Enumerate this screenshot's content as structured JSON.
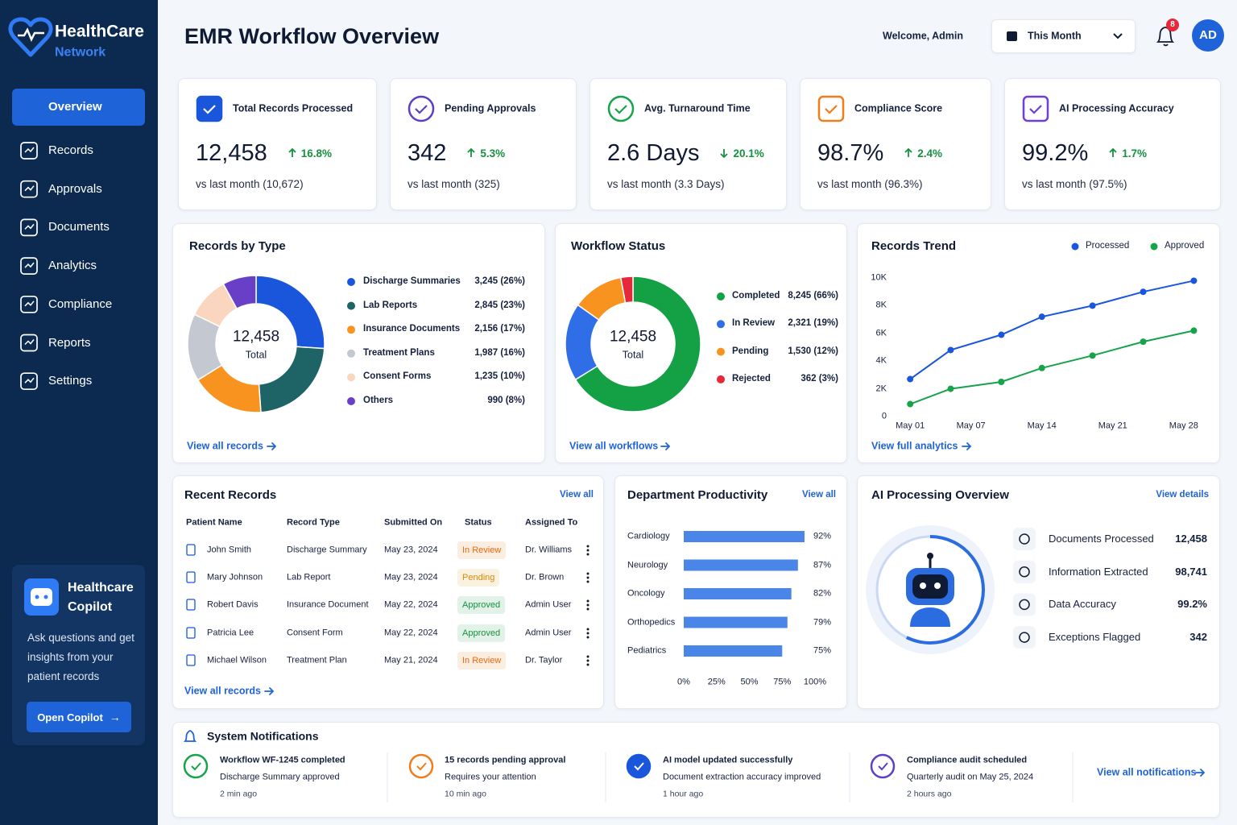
{
  "brand": {
    "name": "HealthCare",
    "tagline": "Network"
  },
  "nav": {
    "items": [
      "Overview",
      "Records",
      "Approvals",
      "Documents",
      "Analytics",
      "Compliance",
      "Reports",
      "Settings"
    ],
    "active": 0
  },
  "copilot": {
    "title": "Healthcare Copilot",
    "text": "Ask questions and get insights from your patient records",
    "button": "Open Copilot"
  },
  "header": {
    "title": "EMR Workflow Overview",
    "welcome": "Welcome, Admin",
    "period": "This Month",
    "notification_count": "8",
    "avatar": "AD"
  },
  "kpis": [
    {
      "label": "Total Records Processed",
      "value": "12,458",
      "change": "16.8%",
      "direction": "up",
      "comparison": "vs last month (10,672)",
      "color": "#1a56db"
    },
    {
      "label": "Pending Approvals",
      "value": "342",
      "change": "5.3%",
      "direction": "up",
      "comparison": "vs last month (325)",
      "color": "#5b3fc4"
    },
    {
      "label": "Avg. Turnaround Time",
      "value": "2.6 Days",
      "change": "20.1%",
      "direction": "down",
      "comparison": "vs last month (3.3 Days)",
      "color": "#16a34a"
    },
    {
      "label": "Compliance Score",
      "value": "98.7%",
      "change": "2.4%",
      "direction": "up",
      "comparison": "vs last month (96.3%)",
      "color": "#f07d1a"
    },
    {
      "label": "AI Processing Accuracy",
      "value": "99.2%",
      "change": "1.7%",
      "direction": "up",
      "comparison": "vs last month (97.5%)",
      "color": "#6d3fd6"
    }
  ],
  "records_by_type": {
    "title": "Records by Type",
    "type": "donut",
    "total": "12,458",
    "total_label": "Total",
    "items": [
      {
        "name": "Discharge Summaries",
        "value": 3245,
        "label": "3,245 (26%)",
        "color": "#1a56db"
      },
      {
        "name": "Lab Reports",
        "value": 2845,
        "label": "2,845 (23%)",
        "color": "#1e6366"
      },
      {
        "name": "Insurance Documents",
        "value": 2156,
        "label": "2,156 (17%)",
        "color": "#f7931e"
      },
      {
        "name": "Treatment Plans",
        "value": 1987,
        "label": "1,987 (16%)",
        "color": "#c3c8d1"
      },
      {
        "name": "Consent Forms",
        "value": 1235,
        "label": "1,235 (10%)",
        "color": "#f9d6bd"
      },
      {
        "name": "Others",
        "value": 990,
        "label": "990 (8%)",
        "color": "#6a3fc8"
      }
    ],
    "link": "View all records"
  },
  "workflow_status": {
    "title": "Workflow Status",
    "type": "donut",
    "total": "12,458",
    "total_label": "Total",
    "items": [
      {
        "name": "Completed",
        "value": 8245,
        "label": "8,245 (66%)",
        "color": "#14a044"
      },
      {
        "name": "In Review",
        "value": 2321,
        "label": "2,321 (19%)",
        "color": "#2f6ee6"
      },
      {
        "name": "Pending",
        "value": 1530,
        "label": "1,530 (12%)",
        "color": "#f7931e"
      },
      {
        "name": "Rejected",
        "value": 362,
        "label": "362 (3%)",
        "color": "#e5283a"
      }
    ],
    "link": "View all workflows"
  },
  "records_trend": {
    "title": "Records Trend",
    "type": "line",
    "x": [
      1,
      5,
      10,
      14,
      19,
      24,
      29
    ],
    "xlim": [
      -1,
      30
    ],
    "xticks": [
      {
        "value": 1,
        "label": "May 01"
      },
      {
        "value": 7,
        "label": "May 07"
      },
      {
        "value": 14,
        "label": "May 14"
      },
      {
        "value": 21,
        "label": "May 21"
      },
      {
        "value": 28,
        "label": "May 28"
      }
    ],
    "ylim": [
      0,
      10000
    ],
    "yticks": [
      0,
      {
        "value": 2000,
        "label": "2K"
      },
      {
        "value": 4000,
        "label": "4K"
      },
      {
        "value": 6000,
        "label": "6K"
      },
      {
        "value": 8000,
        "label": "8K"
      },
      {
        "value": 10000,
        "label": "10K"
      }
    ],
    "series": [
      {
        "name": "Processed",
        "color": "#1a56db",
        "values": [
          2700,
          4800,
          5900,
          7200,
          8000,
          9000,
          9800
        ]
      },
      {
        "name": "Approved",
        "color": "#16a34a",
        "values": [
          900,
          2000,
          2500,
          3500,
          4400,
          5400,
          6200
        ]
      }
    ],
    "link": "View full analytics"
  },
  "department_productivity": {
    "title": "Department Productivity",
    "link": "View all",
    "type": "bar",
    "color": "#4a86e8",
    "categories": [
      "Cardiology",
      "Neurology",
      "Oncology",
      "Orthopedics",
      "Pediatrics"
    ],
    "values": [
      92,
      87,
      82,
      79,
      75
    ],
    "value_labels": [
      "92%",
      "87%",
      "82%",
      "79%",
      "75%"
    ],
    "xlim": [
      0,
      100
    ],
    "xticks": [
      {
        "value": 0,
        "label": "0%"
      },
      {
        "value": 25,
        "label": "25%"
      },
      {
        "value": 50,
        "label": "50%"
      },
      {
        "value": 75,
        "label": "75%"
      },
      {
        "value": 100,
        "label": "100%"
      }
    ]
  },
  "recent_records": {
    "title": "Recent Records",
    "link": "View all",
    "columns": [
      "Patient Name",
      "Record Type",
      "Submitted On",
      "Status",
      "Assigned To"
    ],
    "rows": [
      {
        "patient": "John Smith",
        "type": "Discharge Summary",
        "date": "May 23, 2024",
        "status": "In Review",
        "status_color": "#ea6a0c",
        "assignee": "Dr. Williams"
      },
      {
        "patient": "Mary Johnson",
        "type": "Lab Report",
        "date": "May 23, 2024",
        "status": "Pending",
        "status_color": "#d98a06",
        "assignee": "Dr. Brown"
      },
      {
        "patient": "Robert Davis",
        "type": "Insurance Document",
        "date": "May 22, 2024",
        "status": "Approved",
        "status_color": "#15913f",
        "assignee": "Admin User"
      },
      {
        "patient": "Patricia Lee",
        "type": "Consent Form",
        "date": "May 22, 2024",
        "status": "Approved",
        "status_color": "#15913f",
        "assignee": "Admin User"
      },
      {
        "patient": "Michael Wilson",
        "type": "Treatment Plan",
        "date": "May 21, 2024",
        "status": "In Review",
        "status_color": "#ea6a0c",
        "assignee": "Dr. Taylor"
      }
    ],
    "footer_link": "View all records"
  },
  "ai_overview": {
    "title": "AI Processing Overview",
    "link": "View details",
    "items": [
      {
        "label": "Documents Processed",
        "value": "12,458"
      },
      {
        "label": "Information Extracted",
        "value": "98,741"
      },
      {
        "label": "Data Accuracy",
        "value": "99.2%"
      },
      {
        "label": "Exceptions Flagged",
        "value": "342"
      }
    ]
  },
  "notifications": {
    "title": "System Notifications",
    "items": [
      {
        "title": "Workflow WF-1245 completed",
        "detail": "Discharge Summary approved",
        "time": "2 min ago",
        "color": "#16a34a"
      },
      {
        "title": "15 records pending approval",
        "detail": "Requires your attention",
        "time": "10 min ago",
        "color": "#f07d1a"
      },
      {
        "title": "AI model updated successfully",
        "detail": "Document extraction accuracy improved",
        "time": "1 hour ago",
        "color": "#1a56db"
      },
      {
        "title": "Compliance audit scheduled",
        "detail": "Quarterly audit on May 25, 2024",
        "time": "2 hours ago",
        "color": "#5b3fc4"
      }
    ],
    "link": "View all notifications"
  }
}
